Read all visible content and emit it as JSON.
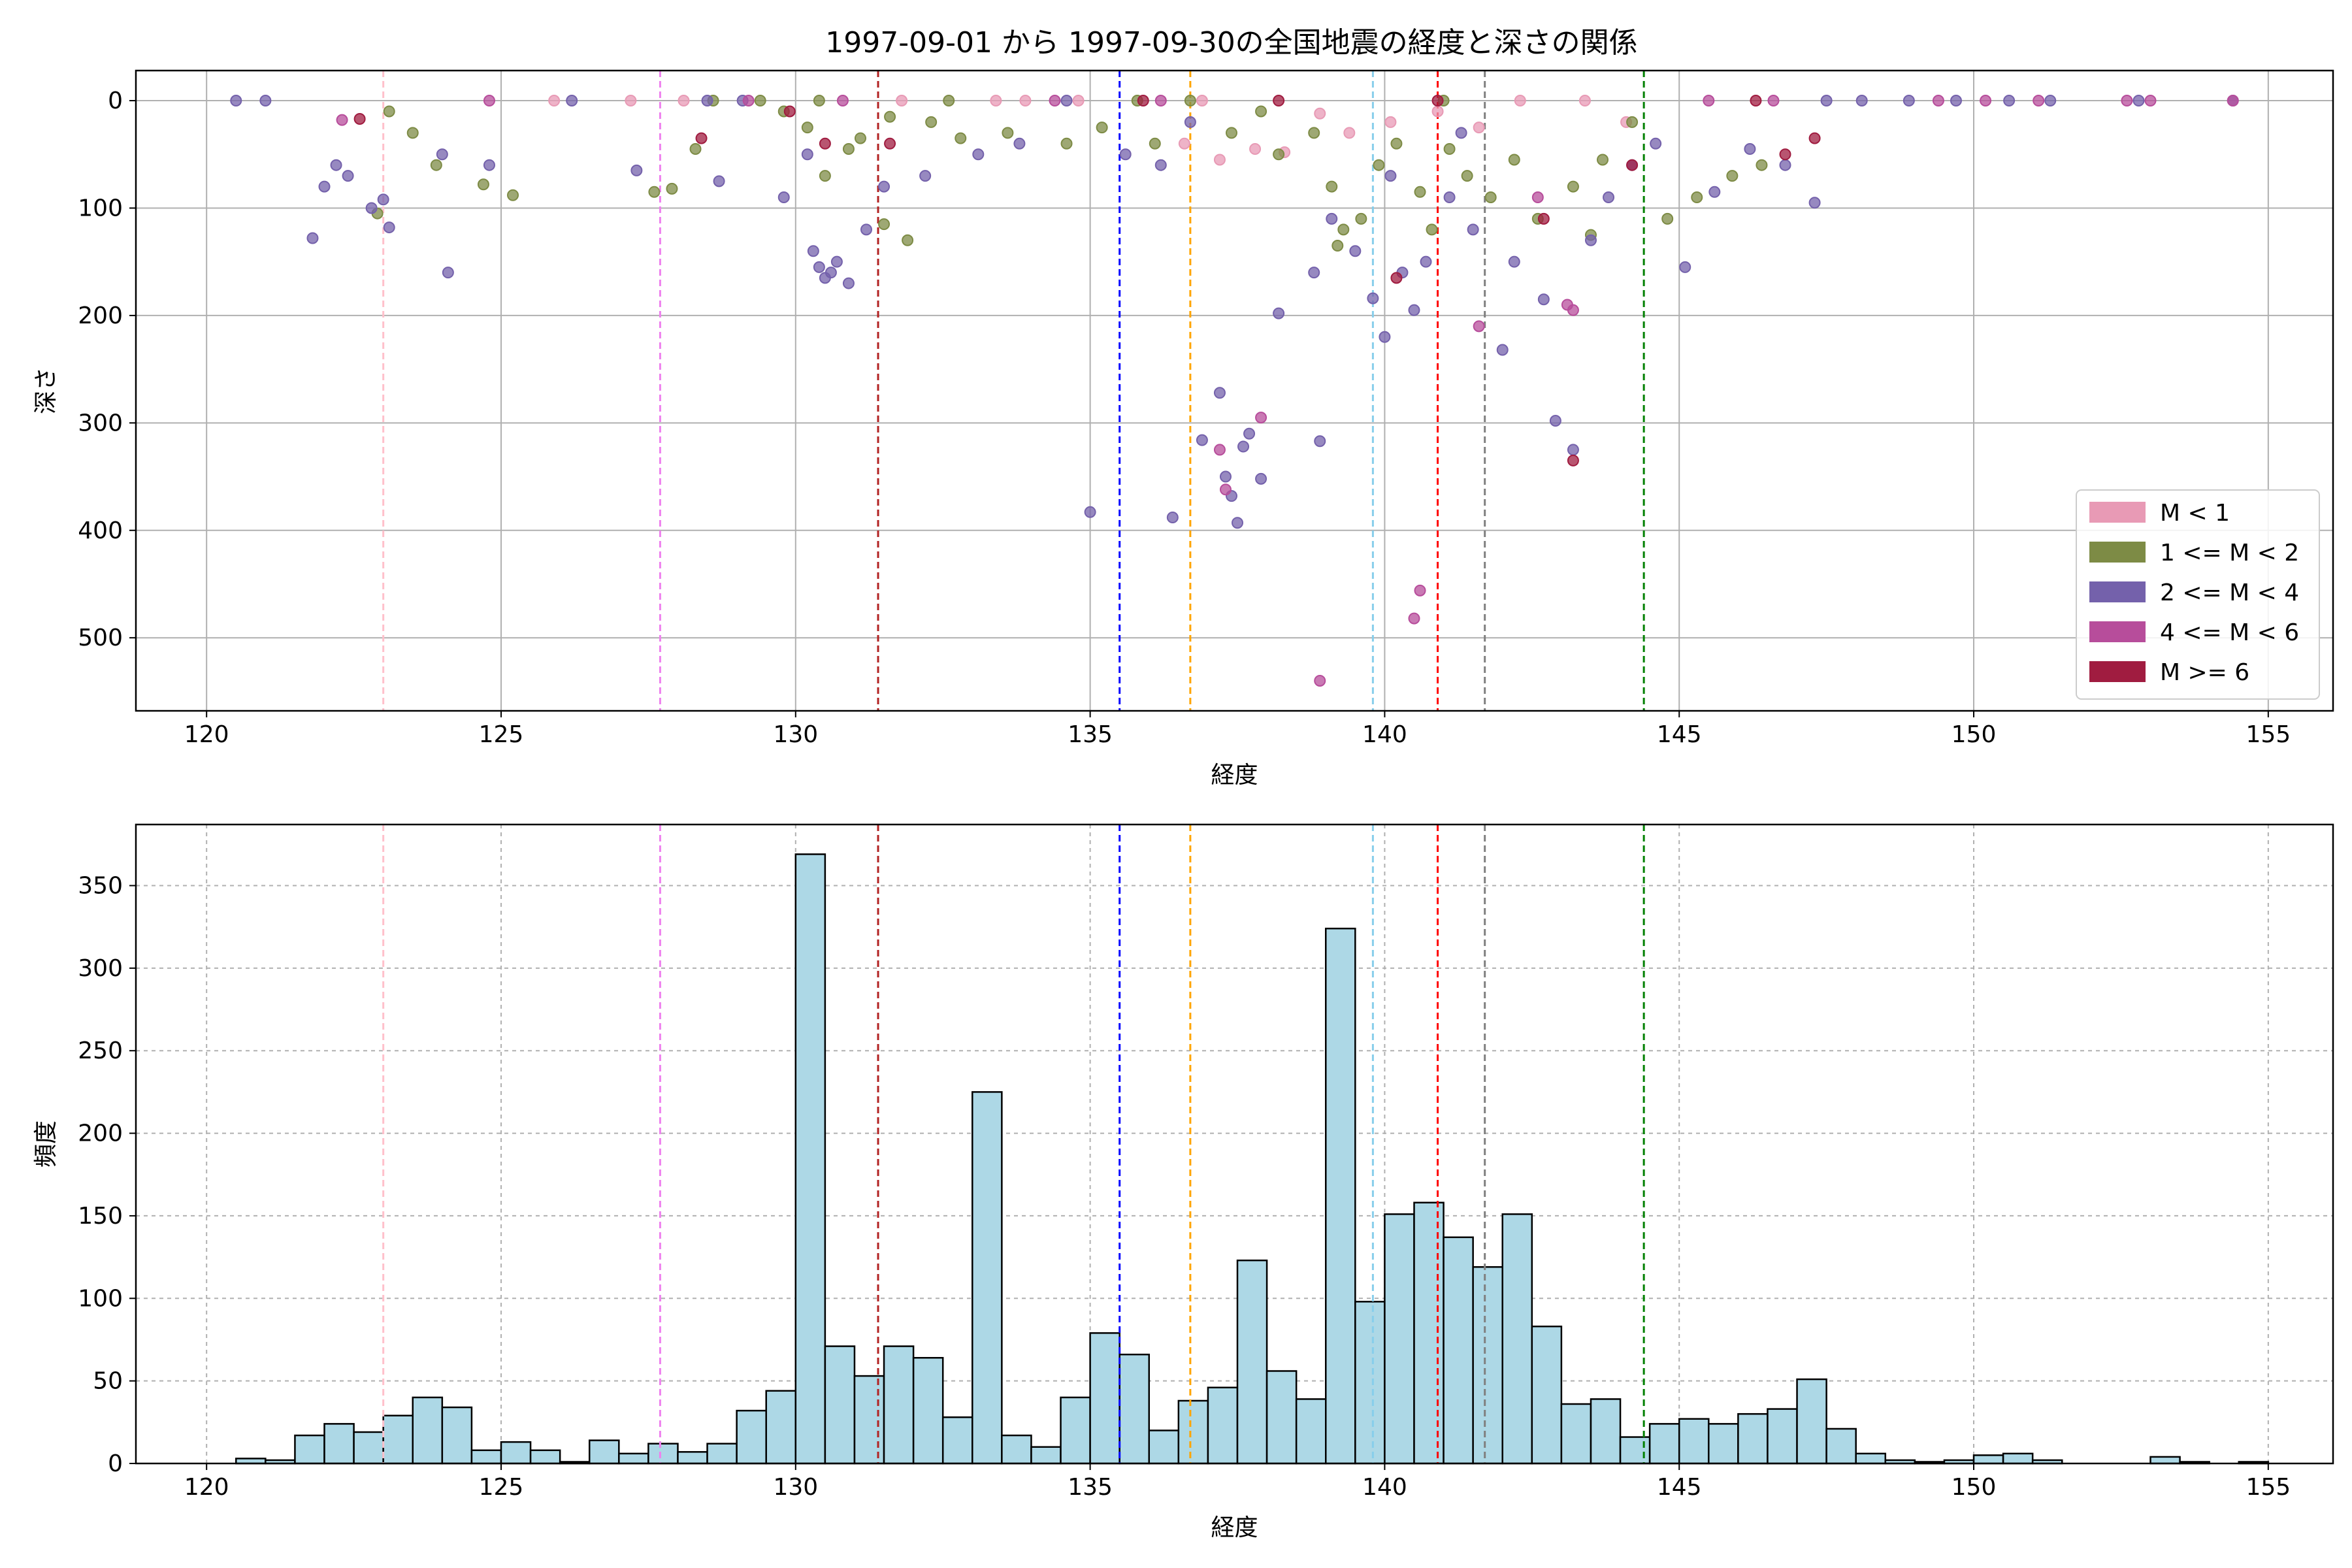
{
  "chart_data": [
    {
      "type": "scatter",
      "title": "1997-09-01 から 1997-09-30の全国地震の経度と深さの関係",
      "xlabel": "経度",
      "ylabel": "深さ",
      "xlim": [
        118.8,
        156.1
      ],
      "ylim": [
        568,
        -28
      ],
      "y_inverted": true,
      "xticks": [
        120,
        125,
        130,
        135,
        140,
        145,
        150,
        155
      ],
      "yticks": [
        0,
        100,
        200,
        300,
        400,
        500
      ],
      "grid": true,
      "legend_position": "lower-right",
      "series": [
        {
          "name": "M < 1",
          "color": "#e89ab5",
          "points": [
            [
              125.9,
              0
            ],
            [
              127.2,
              0
            ],
            [
              128.1,
              0
            ],
            [
              131.8,
              0
            ],
            [
              133.4,
              0
            ],
            [
              134.8,
              0
            ],
            [
              136.6,
              40
            ],
            [
              137.2,
              55
            ],
            [
              138.3,
              48
            ],
            [
              139.4,
              30
            ],
            [
              140.1,
              20
            ],
            [
              140.9,
              10
            ],
            [
              141.6,
              25
            ],
            [
              142.3,
              0
            ],
            [
              143.4,
              0
            ],
            [
              144.1,
              20
            ],
            [
              136.9,
              0
            ],
            [
              137.8,
              45
            ],
            [
              138.9,
              12
            ],
            [
              133.9,
              0
            ]
          ]
        },
        {
          "name": "1 <= M < 2",
          "color": "#7d8b45",
          "points": [
            [
              123.1,
              10
            ],
            [
              123.5,
              30
            ],
            [
              123.9,
              60
            ],
            [
              124.7,
              78
            ],
            [
              125.2,
              88
            ],
            [
              122.9,
              105
            ],
            [
              127.6,
              85
            ],
            [
              127.9,
              82
            ],
            [
              128.3,
              45
            ],
            [
              129.4,
              0
            ],
            [
              129.8,
              10
            ],
            [
              130.2,
              25
            ],
            [
              130.5,
              70
            ],
            [
              130.9,
              45
            ],
            [
              131.1,
              35
            ],
            [
              131.6,
              15
            ],
            [
              132.3,
              20
            ],
            [
              132.8,
              35
            ],
            [
              133.6,
              30
            ],
            [
              134.6,
              40
            ],
            [
              135.2,
              25
            ],
            [
              135.8,
              0
            ],
            [
              136.1,
              40
            ],
            [
              137.4,
              30
            ],
            [
              137.9,
              10
            ],
            [
              138.2,
              50
            ],
            [
              138.8,
              30
            ],
            [
              139.1,
              80
            ],
            [
              139.3,
              120
            ],
            [
              139.6,
              110
            ],
            [
              139.9,
              60
            ],
            [
              140.2,
              40
            ],
            [
              140.6,
              85
            ],
            [
              141.1,
              45
            ],
            [
              141.4,
              70
            ],
            [
              141.8,
              90
            ],
            [
              142.2,
              55
            ],
            [
              142.6,
              110
            ],
            [
              143.2,
              80
            ],
            [
              143.7,
              55
            ],
            [
              144.2,
              20
            ],
            [
              144.8,
              110
            ],
            [
              145.3,
              90
            ],
            [
              145.9,
              70
            ],
            [
              146.4,
              60
            ],
            [
              141.0,
              0
            ],
            [
              136.7,
              0
            ],
            [
              132.6,
              0
            ],
            [
              130.4,
              0
            ],
            [
              128.6,
              0
            ],
            [
              131.9,
              130
            ],
            [
              131.5,
              115
            ],
            [
              139.2,
              135
            ],
            [
              140.8,
              120
            ],
            [
              143.5,
              125
            ]
          ]
        },
        {
          "name": "2 <= M < 4",
          "color": "#7461ab",
          "points": [
            [
              120.5,
              0
            ],
            [
              121.0,
              0
            ],
            [
              121.8,
              128
            ],
            [
              122.0,
              80
            ],
            [
              122.2,
              60
            ],
            [
              122.4,
              70
            ],
            [
              122.8,
              100
            ],
            [
              123.1,
              118
            ],
            [
              123.0,
              92
            ],
            [
              124.1,
              160
            ],
            [
              124.0,
              50
            ],
            [
              124.8,
              60
            ],
            [
              126.2,
              0
            ],
            [
              127.3,
              65
            ],
            [
              128.5,
              0
            ],
            [
              128.7,
              75
            ],
            [
              129.1,
              0
            ],
            [
              129.8,
              90
            ],
            [
              130.2,
              50
            ],
            [
              130.3,
              140
            ],
            [
              130.4,
              155
            ],
            [
              130.5,
              165
            ],
            [
              130.6,
              160
            ],
            [
              130.7,
              150
            ],
            [
              130.9,
              170
            ],
            [
              131.2,
              120
            ],
            [
              131.5,
              80
            ],
            [
              132.2,
              70
            ],
            [
              133.1,
              50
            ],
            [
              133.8,
              40
            ],
            [
              134.6,
              0
            ],
            [
              135.0,
              383
            ],
            [
              135.6,
              50
            ],
            [
              136.2,
              60
            ],
            [
              136.7,
              20
            ],
            [
              137.2,
              272
            ],
            [
              137.3,
              350
            ],
            [
              137.4,
              368
            ],
            [
              137.5,
              393
            ],
            [
              137.6,
              322
            ],
            [
              137.9,
              352
            ],
            [
              137.7,
              310
            ],
            [
              136.4,
              388
            ],
            [
              136.9,
              316
            ],
            [
              138.2,
              198
            ],
            [
              138.8,
              160
            ],
            [
              138.9,
              317
            ],
            [
              139.1,
              110
            ],
            [
              139.5,
              140
            ],
            [
              139.8,
              184
            ],
            [
              140.0,
              220
            ],
            [
              140.3,
              160
            ],
            [
              140.5,
              195
            ],
            [
              140.7,
              150
            ],
            [
              141.1,
              90
            ],
            [
              141.5,
              120
            ],
            [
              142.0,
              232
            ],
            [
              142.2,
              150
            ],
            [
              142.7,
              185
            ],
            [
              142.9,
              298
            ],
            [
              143.2,
              325
            ],
            [
              143.5,
              130
            ],
            [
              143.8,
              90
            ],
            [
              144.2,
              60
            ],
            [
              144.6,
              40
            ],
            [
              145.1,
              155
            ],
            [
              145.6,
              85
            ],
            [
              146.2,
              45
            ],
            [
              146.8,
              60
            ],
            [
              147.3,
              95
            ],
            [
              147.5,
              0
            ],
            [
              148.1,
              0
            ],
            [
              148.9,
              0
            ],
            [
              149.7,
              0
            ],
            [
              150.6,
              0
            ],
            [
              151.3,
              0
            ],
            [
              152.8,
              0
            ],
            [
              154.4,
              0
            ],
            [
              141.3,
              30
            ],
            [
              140.1,
              70
            ]
          ]
        },
        {
          "name": "4 <= M < 6",
          "color": "#b74d9b",
          "points": [
            [
              122.3,
              18
            ],
            [
              124.8,
              0
            ],
            [
              129.2,
              0
            ],
            [
              130.8,
              0
            ],
            [
              134.4,
              0
            ],
            [
              136.2,
              0
            ],
            [
              137.2,
              325
            ],
            [
              137.3,
              362
            ],
            [
              137.9,
              295
            ],
            [
              138.9,
              540
            ],
            [
              140.5,
              482
            ],
            [
              140.6,
              456
            ],
            [
              141.6,
              210
            ],
            [
              143.2,
              195
            ],
            [
              143.1,
              190
            ],
            [
              145.5,
              0
            ],
            [
              146.6,
              0
            ],
            [
              149.4,
              0
            ],
            [
              150.2,
              0
            ],
            [
              151.1,
              0
            ],
            [
              152.6,
              0
            ],
            [
              153.0,
              0
            ],
            [
              154.4,
              0
            ],
            [
              142.6,
              90
            ]
          ]
        },
        {
          "name": "M >= 6",
          "color": "#a01c40",
          "points": [
            [
              122.6,
              17
            ],
            [
              128.4,
              35
            ],
            [
              129.9,
              10
            ],
            [
              130.5,
              40
            ],
            [
              131.6,
              40
            ],
            [
              135.9,
              0
            ],
            [
              138.2,
              0
            ],
            [
              140.2,
              165
            ],
            [
              140.9,
              0
            ],
            [
              143.2,
              335
            ],
            [
              142.7,
              110
            ],
            [
              144.2,
              60
            ],
            [
              146.8,
              50
            ],
            [
              147.3,
              35
            ],
            [
              146.3,
              0
            ]
          ]
        }
      ],
      "vertical_lines": [
        {
          "x": 123.0,
          "color": "#ffc0cb"
        },
        {
          "x": 127.7,
          "color": "#ee82ee"
        },
        {
          "x": 131.4,
          "color": "#b22222"
        },
        {
          "x": 135.5,
          "color": "#0000ff"
        },
        {
          "x": 136.7,
          "color": "#ffa500"
        },
        {
          "x": 139.8,
          "color": "#87ceeb"
        },
        {
          "x": 140.9,
          "color": "#ff0000"
        },
        {
          "x": 141.7,
          "color": "#808080"
        },
        {
          "x": 144.4,
          "color": "#008000"
        }
      ]
    },
    {
      "type": "bar",
      "title": "",
      "xlabel": "経度",
      "ylabel": "頻度",
      "xlim": [
        118.8,
        156.1
      ],
      "ylim": [
        0,
        387
      ],
      "xticks": [
        120,
        125,
        130,
        135,
        140,
        145,
        150,
        155
      ],
      "yticks": [
        0,
        50,
        100,
        150,
        200,
        250,
        300,
        350
      ],
      "grid": true,
      "bin_start": 120.5,
      "bin_width": 0.5,
      "values": [
        3,
        2,
        17,
        24,
        19,
        29,
        40,
        34,
        8,
        13,
        8,
        1,
        14,
        6,
        12,
        7,
        12,
        32,
        44,
        369,
        71,
        53,
        71,
        64,
        28,
        225,
        17,
        10,
        40,
        79,
        66,
        20,
        38,
        46,
        123,
        56,
        39,
        324,
        98,
        151,
        158,
        137,
        119,
        151,
        83,
        36,
        39,
        16,
        24,
        27,
        24,
        30,
        33,
        51,
        21,
        6,
        2,
        1,
        2,
        5,
        6,
        2,
        0,
        0,
        0,
        4,
        1,
        0,
        1
      ],
      "bar_color": "#add8e6",
      "vertical_lines": [
        {
          "x": 123.0,
          "color": "#ffc0cb"
        },
        {
          "x": 127.7,
          "color": "#ee82ee"
        },
        {
          "x": 131.4,
          "color": "#b22222"
        },
        {
          "x": 135.5,
          "color": "#0000ff"
        },
        {
          "x": 136.7,
          "color": "#ffa500"
        },
        {
          "x": 139.8,
          "color": "#87ceeb"
        },
        {
          "x": 140.9,
          "color": "#ff0000"
        },
        {
          "x": 141.7,
          "color": "#808080"
        },
        {
          "x": 144.4,
          "color": "#008000"
        }
      ]
    }
  ]
}
